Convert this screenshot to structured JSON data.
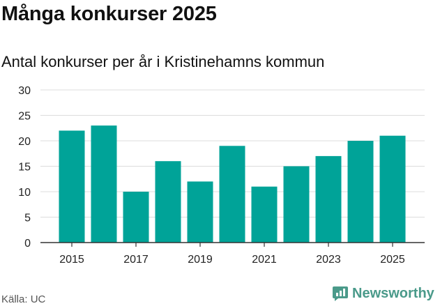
{
  "header": {
    "title": "Många konkurser 2025",
    "subtitle": "Antal konkurser per år i Kristinehamns kommun"
  },
  "footer": {
    "source": "Källa: UC",
    "brand": "Newsworthy"
  },
  "colors": {
    "bar": "#00a398",
    "grid": "#dcdcdc",
    "axis": "#333333",
    "brand": "#4a9a8a"
  },
  "chart_data": {
    "type": "bar",
    "categories": [
      "2015",
      "2016",
      "2017",
      "2018",
      "2019",
      "2020",
      "2021",
      "2022",
      "2023",
      "2024",
      "2025"
    ],
    "series": [
      {
        "values": [
          22,
          23,
          10,
          16,
          12,
          19,
          11,
          15,
          17,
          20,
          21
        ]
      }
    ],
    "x_tick_labels": [
      "2015",
      "2017",
      "2019",
      "2021",
      "2023",
      "2025"
    ],
    "y_ticks": [
      0,
      5,
      10,
      15,
      20,
      25,
      30
    ],
    "ylim": [
      0,
      30
    ],
    "grid": true,
    "legend": "none"
  }
}
